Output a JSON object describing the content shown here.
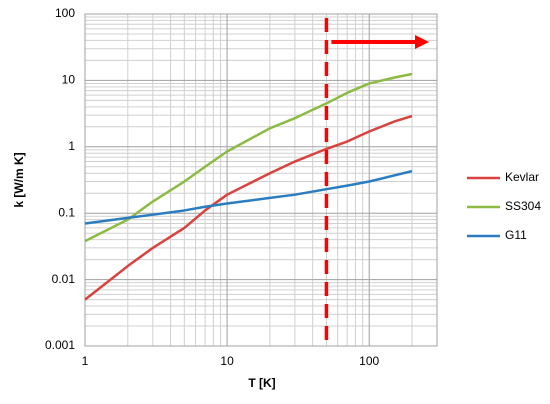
{
  "chart_data": {
    "type": "line",
    "x_label": "T [K]",
    "y_label": "k [W/m K]",
    "x": [
      1,
      2,
      3,
      5,
      7,
      10,
      20,
      30,
      50,
      70,
      100,
      150,
      200
    ],
    "series": [
      {
        "name": "Kevlar",
        "color": "#d8433f",
        "values": [
          0.005,
          0.016,
          0.03,
          0.06,
          0.11,
          0.19,
          0.4,
          0.6,
          0.93,
          1.2,
          1.7,
          2.4,
          2.9
        ]
      },
      {
        "name": "SS304",
        "color": "#8cbb44",
        "values": [
          0.038,
          0.08,
          0.15,
          0.3,
          0.5,
          0.85,
          1.9,
          2.7,
          4.5,
          6.5,
          9,
          11,
          12.5
        ]
      },
      {
        "name": "G11",
        "color": "#2a7dc0",
        "values": [
          0.07,
          0.085,
          0.095,
          0.11,
          0.125,
          0.14,
          0.17,
          0.19,
          0.23,
          0.26,
          0.3,
          0.37,
          0.43
        ]
      }
    ],
    "xlim": [
      1,
      300
    ],
    "ylim": [
      0.001,
      100
    ],
    "xticks": [
      1,
      10,
      100
    ],
    "yticks": [
      100,
      10,
      1,
      0.1,
      0.01,
      0.001
    ],
    "log_x": true,
    "log_y": true,
    "grid": true,
    "minor_grid": true,
    "legend": "right",
    "vertical_line": {
      "x": 50,
      "color": "#ff0000"
    }
  }
}
